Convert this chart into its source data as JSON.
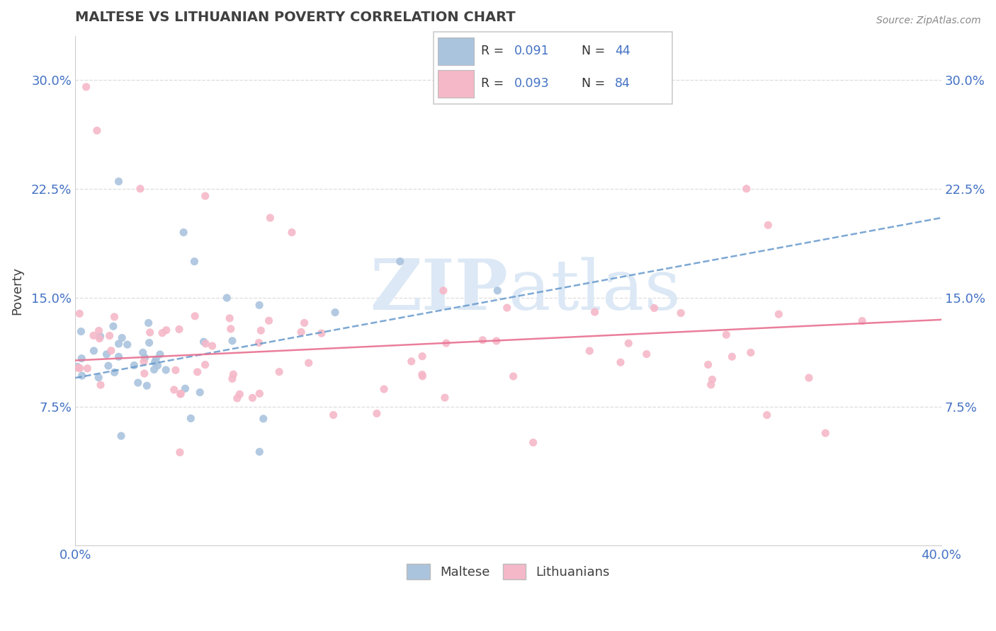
{
  "title": "MALTESE VS LITHUANIAN POVERTY CORRELATION CHART",
  "source": "Source: ZipAtlas.com",
  "ylabel": "Poverty",
  "xlim": [
    0.0,
    0.4
  ],
  "ylim": [
    -0.02,
    0.33
  ],
  "yticks": [
    0.075,
    0.15,
    0.225,
    0.3
  ],
  "ytick_labels": [
    "7.5%",
    "15.0%",
    "22.5%",
    "30.0%"
  ],
  "xtick_labels": [
    "0.0%",
    "40.0%"
  ],
  "maltese_color": "#aac4de",
  "lithuanian_color": "#f5b8c8",
  "maltese_line_color": "#6699cc",
  "lithuanian_line_color": "#e87090",
  "grid_color": "#dddddd",
  "text_color": "#4472c4",
  "title_color": "#404040",
  "watermark_color": "#dce8f5"
}
